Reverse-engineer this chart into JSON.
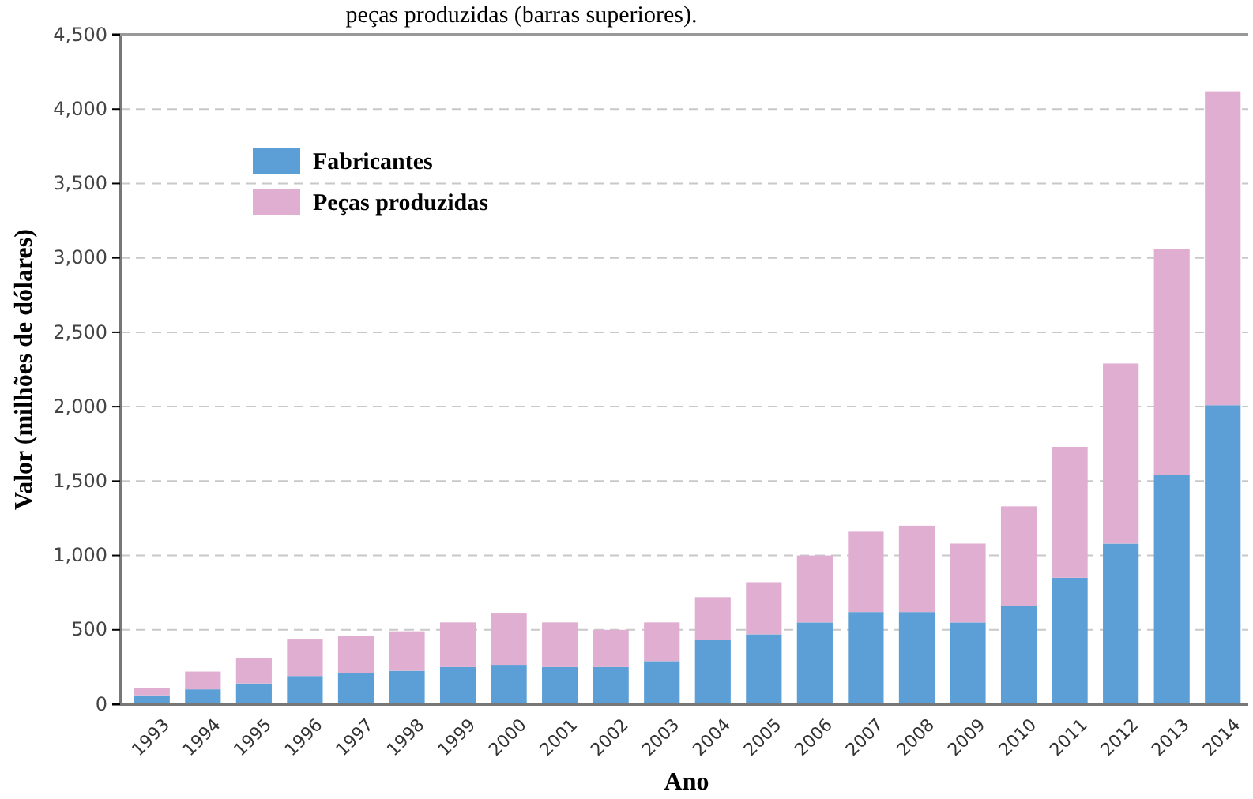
{
  "chart_data": {
    "type": "bar",
    "stacked": true,
    "xlabel": "Ano",
    "ylabel": "Valor (milhões de dólares)",
    "annotations": [
      "peças produzidas (barras superiores)."
    ],
    "categories": [
      "1993",
      "1994",
      "1995",
      "1996",
      "1997",
      "1998",
      "1999",
      "2000",
      "2001",
      "2002",
      "2003",
      "2004",
      "2005",
      "2006",
      "2007",
      "2008",
      "2009",
      "2010",
      "2011",
      "2012",
      "2013",
      "2014"
    ],
    "series": [
      {
        "name": "Fabricantes",
        "color": "#5b9fd6",
        "values": [
          60,
          100,
          140,
          190,
          210,
          225,
          250,
          265,
          250,
          250,
          290,
          430,
          470,
          550,
          620,
          620,
          550,
          660,
          850,
          1080,
          1540,
          2010
        ]
      },
      {
        "name": "Peças produzidas",
        "color": "#e0aed0",
        "values": [
          50,
          120,
          170,
          250,
          250,
          265,
          300,
          345,
          300,
          250,
          260,
          290,
          350,
          450,
          540,
          580,
          530,
          670,
          880,
          1210,
          1520,
          2110
        ]
      }
    ],
    "ylim": [
      0,
      4500
    ],
    "yticks": [
      0,
      500,
      {
        "value": 1000,
        "label": "1,000"
      },
      {
        "value": 1500,
        "label": "1,500"
      },
      {
        "value": 2000,
        "label": "2,000"
      },
      {
        "value": 2500,
        "label": "2,500"
      },
      {
        "value": 3000,
        "label": "3,000"
      },
      {
        "value": 3500,
        "label": "3,500"
      },
      {
        "value": 4000,
        "label": "4,000"
      },
      {
        "value": 4500,
        "label": "4,500"
      }
    ],
    "grid": "y",
    "legend": "top left"
  }
}
